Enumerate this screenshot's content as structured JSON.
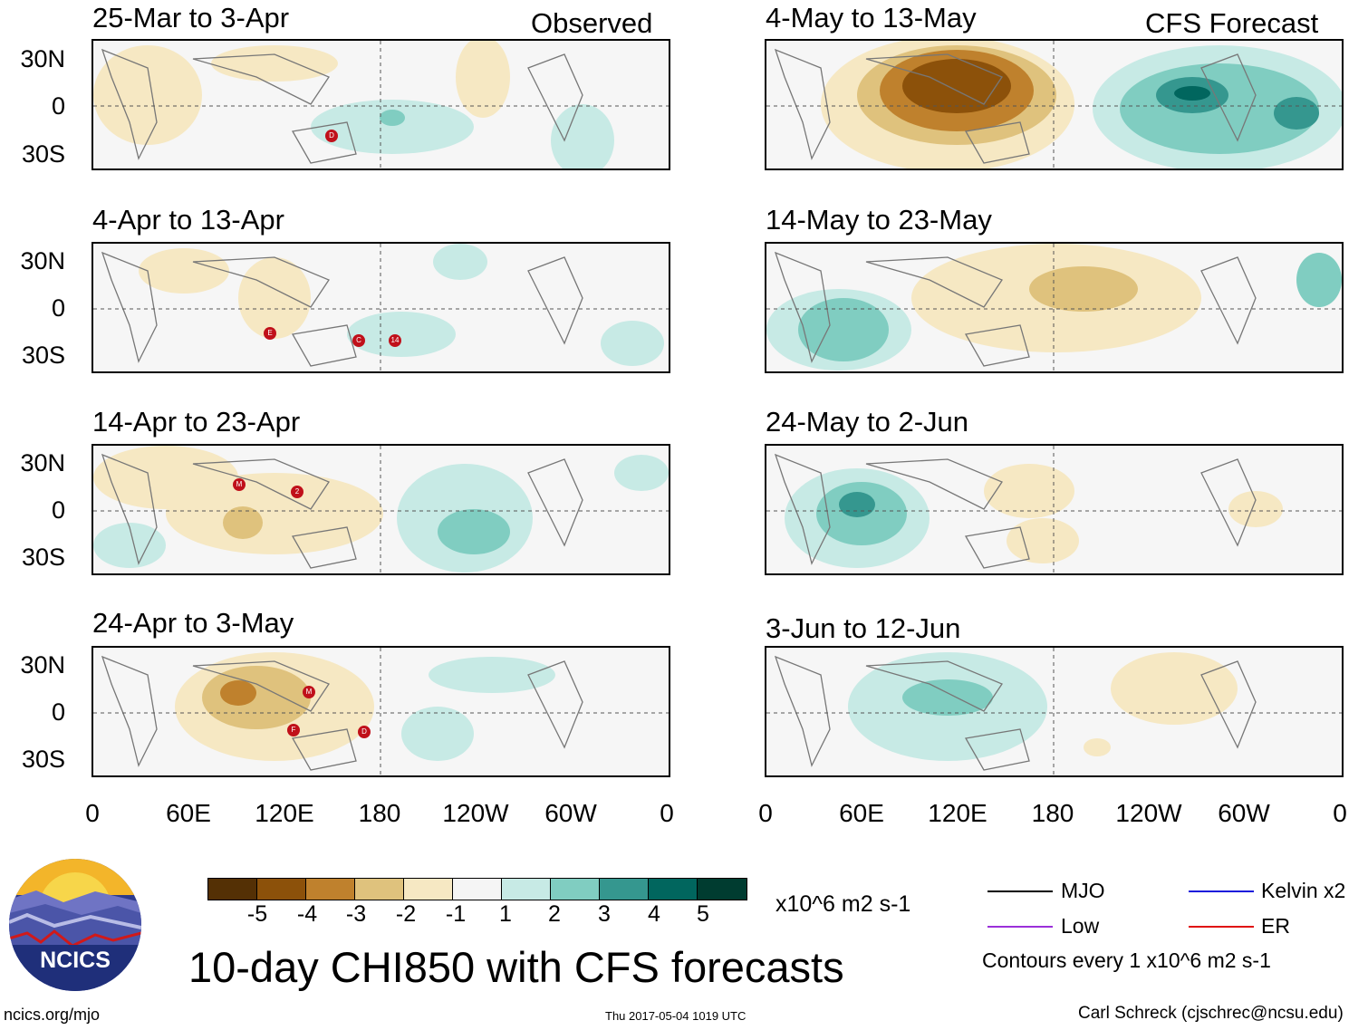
{
  "title": "10-day CHI850 with CFS forecasts",
  "footer": {
    "left": "ncics.org/mjo",
    "center": "Thu 2017-05-04 1019 UTC",
    "right": "Carl Schreck (cjschrec@ncsu.edu)"
  },
  "logo": {
    "text": "NCICS"
  },
  "columns": {
    "left_label": "Observed",
    "right_label": "CFS Forecast"
  },
  "y_ticks": [
    "30N",
    "0",
    "30S"
  ],
  "x_ticks": [
    "0",
    "60E",
    "120E",
    "180",
    "120W",
    "60W",
    "0"
  ],
  "panels_left": [
    {
      "title": "25-Mar to 3-Apr"
    },
    {
      "title": "4-Apr to 13-Apr"
    },
    {
      "title": "14-Apr to 23-Apr"
    },
    {
      "title": "24-Apr to 3-May"
    }
  ],
  "panels_right": [
    {
      "title": "4-May to 13-May"
    },
    {
      "title": "14-May to 23-May"
    },
    {
      "title": "24-May to 2-Jun"
    },
    {
      "title": "3-Jun to 12-Jun"
    }
  ],
  "colorbar": {
    "labels": [
      "-5",
      "-4",
      "-3",
      "-2",
      "-1",
      "1",
      "2",
      "3",
      "4",
      "5"
    ],
    "colors": [
      "#543005",
      "#8c510a",
      "#bf812d",
      "#dfc27d",
      "#f6e8c3",
      "#f5f5f5",
      "#c7eae5",
      "#80cdc1",
      "#35978f",
      "#01665e",
      "#003c30"
    ],
    "units": "x10^6 m2 s-1"
  },
  "legend": {
    "mjo": "MJO",
    "kelvin": "Kelvin x2",
    "low": "Low",
    "er": "ER",
    "contours": "Contours every 1 x10^6 m2 s-1",
    "colors": {
      "mjo": "#000000",
      "kelvin": "#1a1adb",
      "low": "#9b30d9",
      "er": "#e01010"
    }
  },
  "storm_markers": {
    "p0": [
      "D"
    ],
    "p1": [
      "E",
      "C",
      "14"
    ],
    "p2": [
      "M",
      "2"
    ],
    "p3": [
      "M",
      "F",
      "D"
    ]
  }
}
